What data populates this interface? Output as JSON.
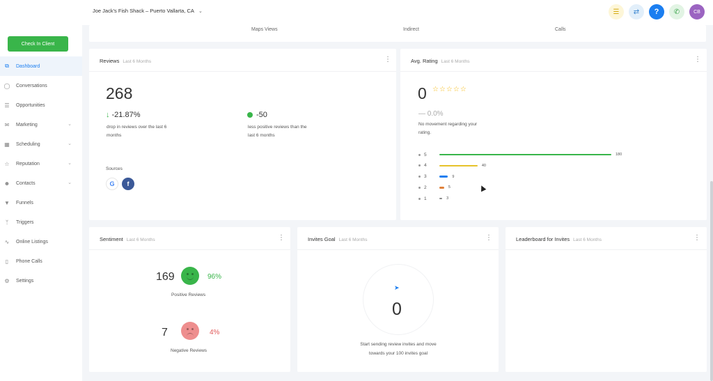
{
  "topbar": {
    "location": "Joe Jack's Fish Shack – Puerto Vallarta, CA",
    "avatar_initials": "CB",
    "icons": [
      "list-icon",
      "swap-icon",
      "help-icon",
      "phone-icon"
    ]
  },
  "sidebar": {
    "checkin_label": "Check In Client",
    "items": [
      {
        "label": "Dashboard",
        "icon": "dashboard-icon",
        "active": true
      },
      {
        "label": "Conversations",
        "icon": "chat-icon"
      },
      {
        "label": "Opportunities",
        "icon": "filter-icon"
      },
      {
        "label": "Marketing",
        "icon": "mail-icon",
        "caret": true
      },
      {
        "label": "Scheduling",
        "icon": "calendar-icon",
        "caret": true
      },
      {
        "label": "Reputation",
        "icon": "star-icon",
        "caret": true
      },
      {
        "label": "Contacts",
        "icon": "person-icon",
        "caret": true
      },
      {
        "label": "Funnels",
        "icon": "funnel-icon"
      },
      {
        "label": "Triggers",
        "icon": "branch-icon"
      },
      {
        "label": "Online Listings",
        "icon": "pulse-icon"
      },
      {
        "label": "Phone Calls",
        "icon": "mobile-icon"
      },
      {
        "label": "Settings",
        "icon": "gear-icon"
      }
    ]
  },
  "strip": {
    "labels": [
      "Maps Views",
      "Indirect",
      "Calls"
    ]
  },
  "reviews": {
    "title": "Reviews",
    "period": "Last 6 Months",
    "count": "268",
    "pct_change": "-21.87%",
    "pct_desc_1": "drop in reviews over the last 6",
    "pct_desc_2": "months",
    "positive_change": "-50",
    "positive_desc_1": "less positive reviews than the",
    "positive_desc_2": "last 6 months",
    "sources_label": "Sources"
  },
  "avg_rating": {
    "title": "Avg. Rating",
    "period": "Last 6 Months",
    "value": "0",
    "change": "0.0%",
    "desc_1": "No movement regarding your",
    "desc_2": "rating.",
    "bars": [
      {
        "label": "5",
        "count": "180",
        "value": 180,
        "color": "#39b54a"
      },
      {
        "label": "4",
        "count": "40",
        "value": 40,
        "color": "#e6c229"
      },
      {
        "label": "3",
        "count": "9",
        "value": 9,
        "color": "#1b7ef0"
      },
      {
        "label": "2",
        "count": "5",
        "value": 5,
        "color": "#e0803a"
      },
      {
        "label": "1",
        "count": "3",
        "value": 3,
        "color": "#888888"
      }
    ],
    "max": 180
  },
  "sentiment": {
    "title": "Sentiment",
    "period": "Last 6 Months",
    "positive_count": "169",
    "positive_pct": "96%",
    "positive_label": "Positive Reviews",
    "negative_count": "7",
    "negative_pct": "4%",
    "negative_label": "Negative Reviews",
    "positive_color": "#39b54a",
    "negative_color": "#e05a5a"
  },
  "invites": {
    "title": "Invites Goal",
    "period": "Last 6 Months",
    "value": "0",
    "desc_1": "Start sending review invites and move",
    "desc_2": "towards your 100 invites goal"
  },
  "leaderboard": {
    "title": "Leaderboard for Invites",
    "period": "Last 6 Months"
  }
}
